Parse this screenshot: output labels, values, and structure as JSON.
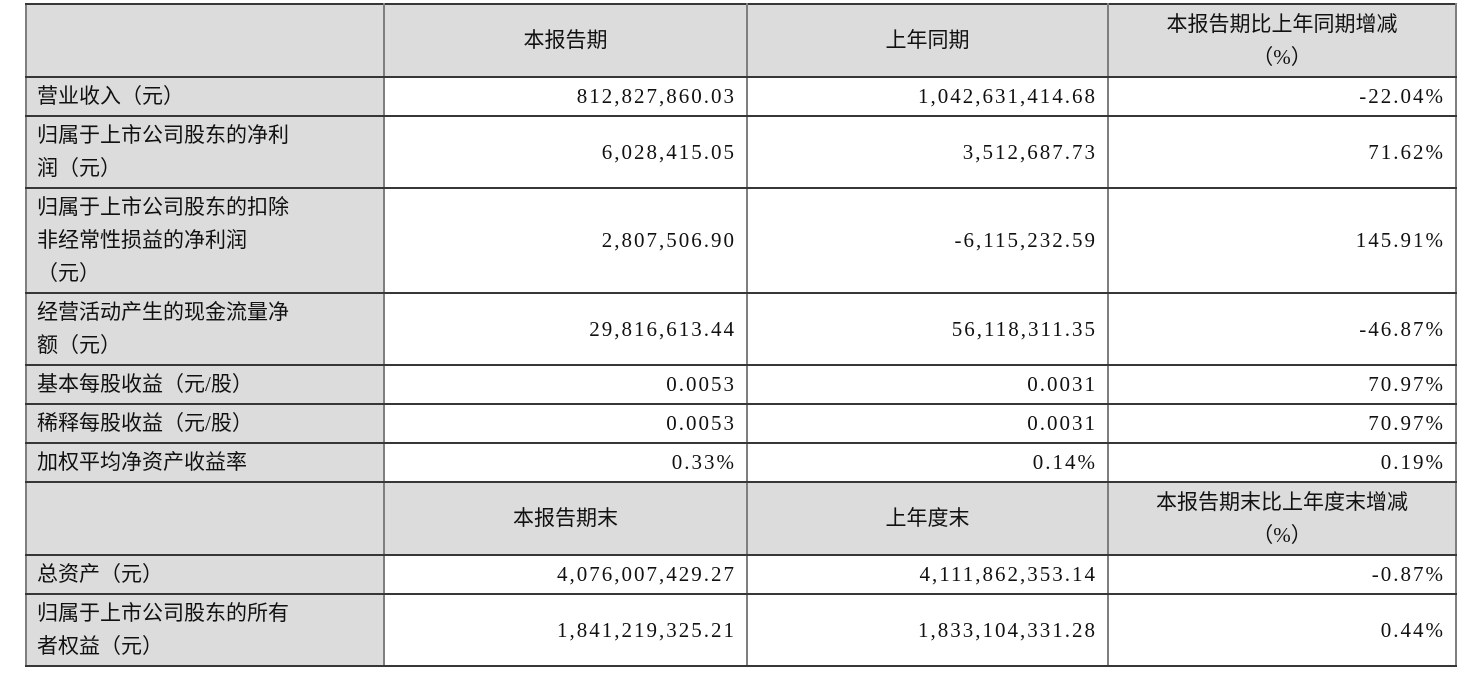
{
  "table": {
    "name": "主要会计数据和财务指标",
    "colors": {
      "header_bg": "#dcdcdc",
      "label_bg": "#dcdcdc",
      "border_horizontal": "#373737",
      "border_vertical": "#7f7f7f",
      "cell_bg": "#ffffff",
      "text": "#111111"
    },
    "sections": [
      {
        "header": {
          "col1": "",
          "col2": "本报告期",
          "col3": "上年同期",
          "col4": "本报告期比上年同期增减\n（%）"
        },
        "rows": [
          {
            "label": "营业收入（元）",
            "current": "812,827,860.03",
            "prior": "1,042,631,414.68",
            "change": "-22.04%"
          },
          {
            "label": "归属于上市公司股东的净利\n润（元）",
            "current": "6,028,415.05",
            "prior": "3,512,687.73",
            "change": "71.62%"
          },
          {
            "label": "归属于上市公司股东的扣除\n非经常性损益的净利润\n（元）",
            "current": "2,807,506.90",
            "prior": "-6,115,232.59",
            "change": "145.91%"
          },
          {
            "label": "经营活动产生的现金流量净\n额（元）",
            "current": "29,816,613.44",
            "prior": "56,118,311.35",
            "change": "-46.87%"
          },
          {
            "label": "基本每股收益（元/股）",
            "current": "0.0053",
            "prior": "0.0031",
            "change": "70.97%"
          },
          {
            "label": "稀释每股收益（元/股）",
            "current": "0.0053",
            "prior": "0.0031",
            "change": "70.97%"
          },
          {
            "label": "加权平均净资产收益率",
            "current": "0.33%",
            "prior": "0.14%",
            "change": "0.19%"
          }
        ]
      },
      {
        "header": {
          "col1": "",
          "col2": "本报告期末",
          "col3": "上年度末",
          "col4": "本报告期末比上年度末增减\n（%）"
        },
        "rows": [
          {
            "label": "总资产（元）",
            "current": "4,076,007,429.27",
            "prior": "4,111,862,353.14",
            "change": "-0.87%"
          },
          {
            "label": "归属于上市公司股东的所有\n者权益（元）",
            "current": "1,841,219,325.21",
            "prior": "1,833,104,331.28",
            "change": "0.44%"
          }
        ]
      }
    ]
  }
}
